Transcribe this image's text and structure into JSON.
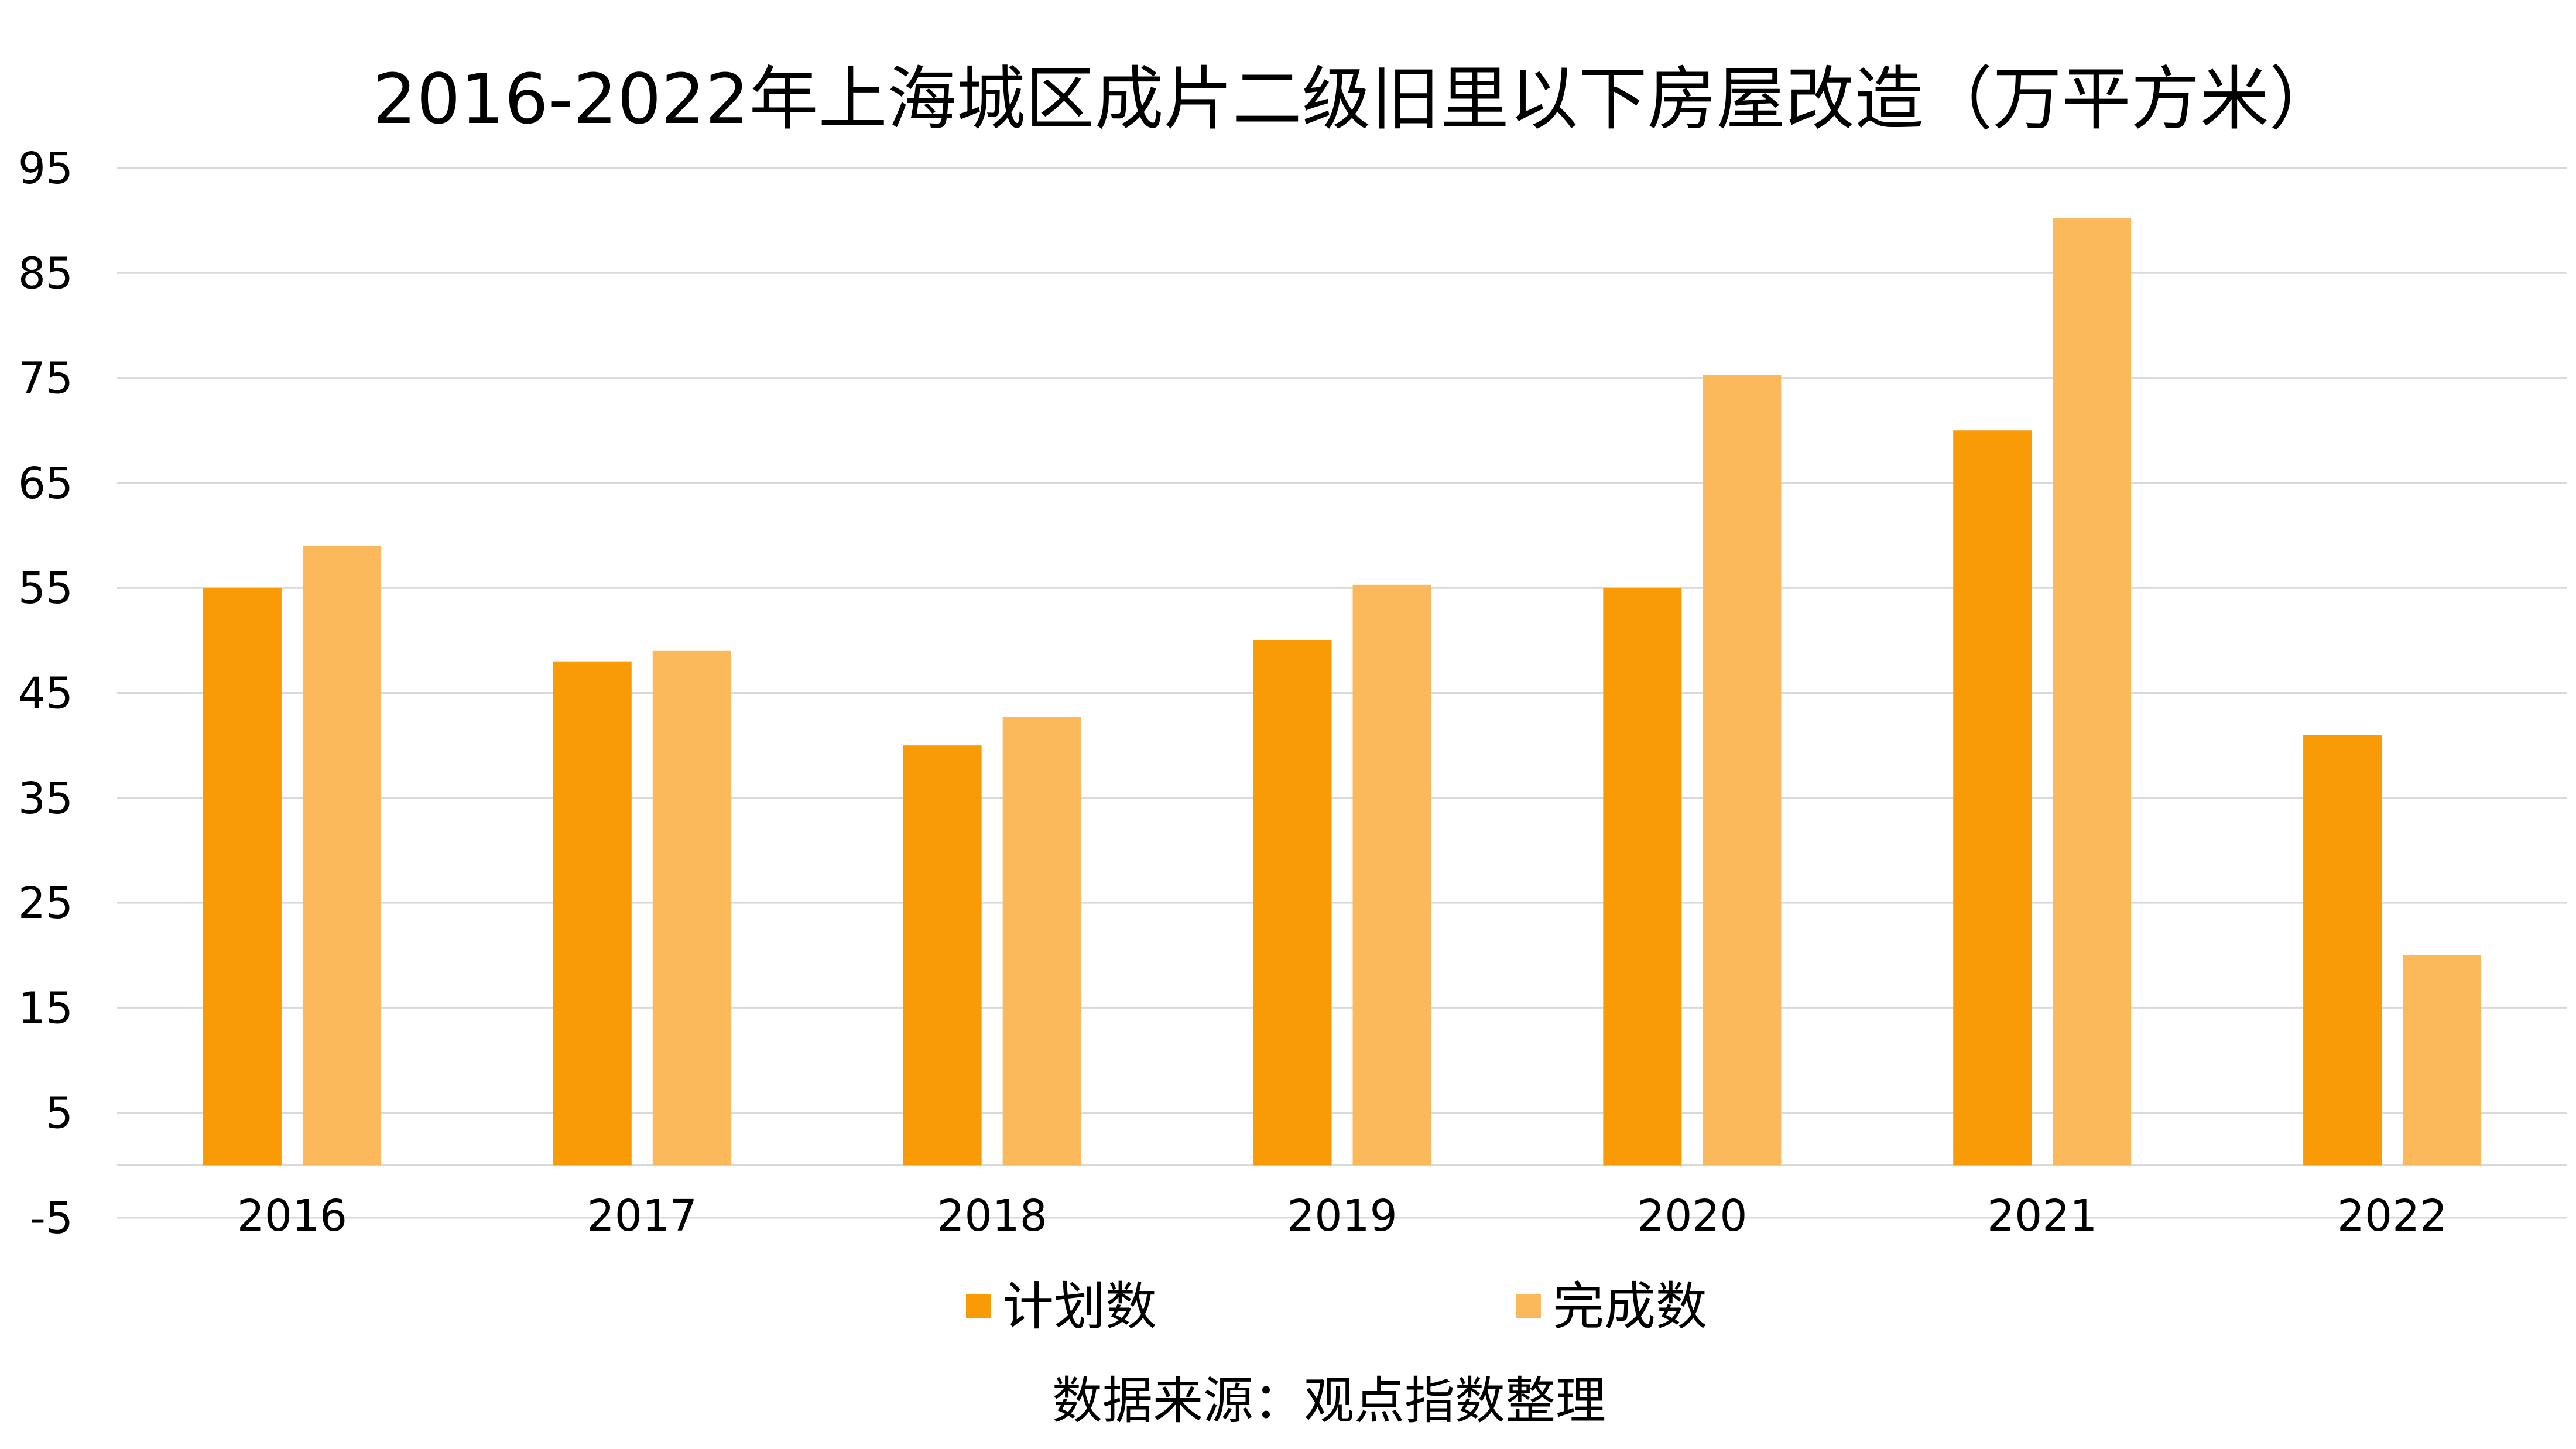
{
  "chart_data": {
    "type": "bar",
    "title": "2016-2022年上海城区成片二级旧里以下房屋改造（万平方米）",
    "categories": [
      "2016",
      "2017",
      "2018",
      "2019",
      "2020",
      "2021",
      "2022"
    ],
    "series": [
      {
        "name": "计划数",
        "values": [
          55,
          48,
          40,
          50,
          55,
          70,
          41
        ],
        "color": "#f99b06"
      },
      {
        "name": "完成数",
        "values": [
          59,
          49,
          42.7,
          55.3,
          75.3,
          90.2,
          20
        ],
        "color": "#fbb95c"
      }
    ],
    "yticks": [
      "-5",
      "5",
      "15",
      "25",
      "35",
      "45",
      "55",
      "65",
      "75",
      "85",
      "95"
    ],
    "ylim": [
      -5,
      95
    ],
    "baseline": 0,
    "grid": true,
    "legend_position": "bottom",
    "xlabel": "",
    "ylabel": ""
  },
  "source_note": "数据来源：观点指数整理"
}
